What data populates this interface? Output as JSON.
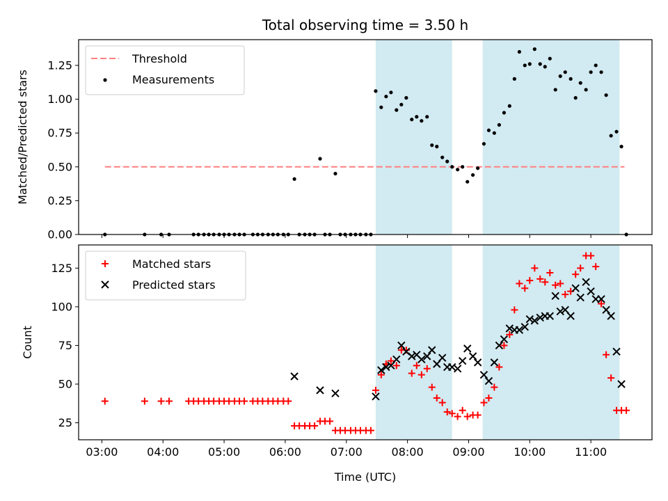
{
  "title": "Total observing time = 3.50 h",
  "xlabel": "Time (UTC)",
  "x_ticks": [
    "03:00",
    "04:00",
    "05:00",
    "06:00",
    "07:00",
    "08:00",
    "09:00",
    "10:00",
    "11:00"
  ],
  "shaded_intervals_hours": [
    [
      7.48,
      8.73
    ],
    [
      9.23,
      11.47
    ]
  ],
  "colors": {
    "shade": "#add8e6",
    "threshold": "#ff7f7f",
    "measurement": "#000000",
    "matched": "#ff0000",
    "predicted": "#000000"
  },
  "chart_data": [
    {
      "type": "scatter",
      "ylabel": "Matched/Predicted stars",
      "xlim": [
        2.62,
        12.0
      ],
      "ylim": [
        0,
        1.44
      ],
      "y_ticks": [
        "0.00",
        "0.25",
        "0.50",
        "0.75",
        "1.00",
        "1.25"
      ],
      "legend_position": "top-left",
      "series": [
        {
          "name": "Threshold",
          "style": "dashed-line",
          "x": [
            3.05,
            11.55
          ],
          "y": [
            0.5,
            0.5
          ]
        },
        {
          "name": "Measurements",
          "style": "dot",
          "x": [
            3.05,
            3.7,
            3.97,
            4.1,
            4.5,
            4.58,
            4.67,
            4.75,
            4.83,
            4.92,
            5.0,
            5.08,
            5.17,
            5.25,
            5.33,
            5.47,
            5.55,
            5.63,
            5.72,
            5.8,
            5.88,
            5.97,
            6.05,
            6.15,
            6.23,
            6.32,
            6.4,
            6.48,
            6.57,
            6.65,
            6.73,
            6.82,
            6.9,
            6.98,
            7.07,
            7.15,
            7.23,
            7.32,
            7.4,
            7.48,
            7.57,
            7.65,
            7.73,
            7.82,
            7.9,
            7.98,
            8.07,
            8.15,
            8.23,
            8.32,
            8.4,
            8.48,
            8.57,
            8.65,
            8.73,
            8.82,
            8.9,
            8.98,
            9.07,
            9.15,
            9.25,
            9.33,
            9.42,
            9.5,
            9.58,
            9.67,
            9.75,
            9.83,
            9.92,
            10.0,
            10.08,
            10.17,
            10.25,
            10.33,
            10.42,
            10.5,
            10.58,
            10.67,
            10.75,
            10.83,
            10.92,
            11.0,
            11.08,
            11.17,
            11.25,
            11.33,
            11.42,
            11.5,
            11.58
          ],
          "y": [
            0,
            0,
            0,
            0,
            0,
            0,
            0,
            0,
            0,
            0,
            0,
            0,
            0,
            0,
            0,
            0,
            0,
            0,
            0,
            0,
            0,
            0,
            0,
            0.41,
            0,
            0,
            0,
            0,
            0.56,
            0,
            0,
            0.45,
            0,
            0,
            0,
            0,
            0,
            0,
            0,
            1.06,
            0.94,
            1.02,
            1.05,
            0.92,
            0.96,
            1.01,
            0.85,
            0.87,
            0.84,
            0.87,
            0.66,
            0.65,
            0.57,
            0.54,
            0.5,
            0.48,
            0.5,
            0.39,
            0.44,
            0.49,
            0.67,
            0.77,
            0.75,
            0.81,
            0.9,
            0.95,
            1.15,
            1.35,
            1.25,
            1.26,
            1.37,
            1.26,
            1.24,
            1.3,
            1.07,
            1.17,
            1.2,
            1.15,
            1.01,
            1.12,
            1.07,
            1.2,
            1.25,
            1.2,
            1.03,
            0.73,
            0.76,
            0.65,
            0
          ]
        }
      ]
    },
    {
      "type": "scatter",
      "ylabel": "Count",
      "xlim": [
        2.62,
        12.0
      ],
      "ylim": [
        14,
        140
      ],
      "y_ticks": [
        "25",
        "50",
        "75",
        "100",
        "125"
      ],
      "legend_position": "top-left",
      "series": [
        {
          "name": "Matched stars",
          "style": "plus",
          "x": [
            3.05,
            3.7,
            3.97,
            4.1,
            4.42,
            4.5,
            4.58,
            4.67,
            4.75,
            4.83,
            4.92,
            5.0,
            5.08,
            5.17,
            5.25,
            5.33,
            5.47,
            5.55,
            5.63,
            5.72,
            5.8,
            5.88,
            5.97,
            6.05,
            6.15,
            6.23,
            6.32,
            6.4,
            6.48,
            6.57,
            6.65,
            6.73,
            6.82,
            6.9,
            6.98,
            7.07,
            7.15,
            7.23,
            7.32,
            7.4,
            7.48,
            7.57,
            7.65,
            7.73,
            7.82,
            7.9,
            7.98,
            8.07,
            8.15,
            8.23,
            8.32,
            8.4,
            8.48,
            8.57,
            8.65,
            8.73,
            8.82,
            8.9,
            8.98,
            9.07,
            9.15,
            9.25,
            9.33,
            9.42,
            9.5,
            9.58,
            9.67,
            9.75,
            9.83,
            9.92,
            10.0,
            10.08,
            10.17,
            10.25,
            10.33,
            10.42,
            10.5,
            10.58,
            10.67,
            10.75,
            10.83,
            10.92,
            11.0,
            11.08,
            11.17,
            11.25,
            11.33,
            11.42,
            11.5,
            11.58
          ],
          "y": [
            39,
            39,
            39,
            39,
            39,
            39,
            39,
            39,
            39,
            39,
            39,
            39,
            39,
            39,
            39,
            39,
            39,
            39,
            39,
            39,
            39,
            39,
            39,
            39,
            23,
            23,
            23,
            23,
            23,
            26,
            26,
            26,
            20,
            20,
            20,
            20,
            20,
            20,
            20,
            20,
            46,
            56,
            63,
            65,
            62,
            72,
            72,
            57,
            62,
            56,
            60,
            48,
            41,
            38,
            32,
            31,
            29,
            33,
            29,
            30,
            30,
            38,
            41,
            48,
            61,
            75,
            82,
            98,
            115,
            112,
            117,
            125,
            118,
            116,
            122,
            114,
            115,
            108,
            110,
            121,
            125,
            133,
            133,
            126,
            102,
            69,
            54,
            33,
            33,
            33
          ],
          "x_extra_note": ""
        },
        {
          "name": "Predicted stars",
          "style": "x",
          "x": [
            6.15,
            6.57,
            6.82,
            7.48,
            7.57,
            7.65,
            7.73,
            7.82,
            7.9,
            7.98,
            8.07,
            8.15,
            8.23,
            8.32,
            8.4,
            8.48,
            8.57,
            8.65,
            8.73,
            8.82,
            8.9,
            8.98,
            9.07,
            9.15,
            9.25,
            9.33,
            9.42,
            9.5,
            9.58,
            9.67,
            9.75,
            9.83,
            9.92,
            10.0,
            10.08,
            10.17,
            10.25,
            10.33,
            10.42,
            10.5,
            10.58,
            10.67,
            10.75,
            10.83,
            10.92,
            11.0,
            11.08,
            11.17,
            11.25,
            11.33,
            11.42,
            11.5
          ],
          "y": [
            55,
            46,
            44,
            42,
            59,
            61,
            62,
            66,
            75,
            71,
            68,
            69,
            66,
            68,
            72,
            63,
            67,
            61,
            61,
            60,
            65,
            73,
            68,
            64,
            56,
            52,
            64,
            75,
            79,
            86,
            85,
            85,
            87,
            92,
            91,
            93,
            94,
            94,
            107,
            97,
            98,
            94,
            112,
            106,
            116,
            110,
            105,
            105,
            98,
            94,
            71,
            50
          ]
        }
      ]
    }
  ]
}
